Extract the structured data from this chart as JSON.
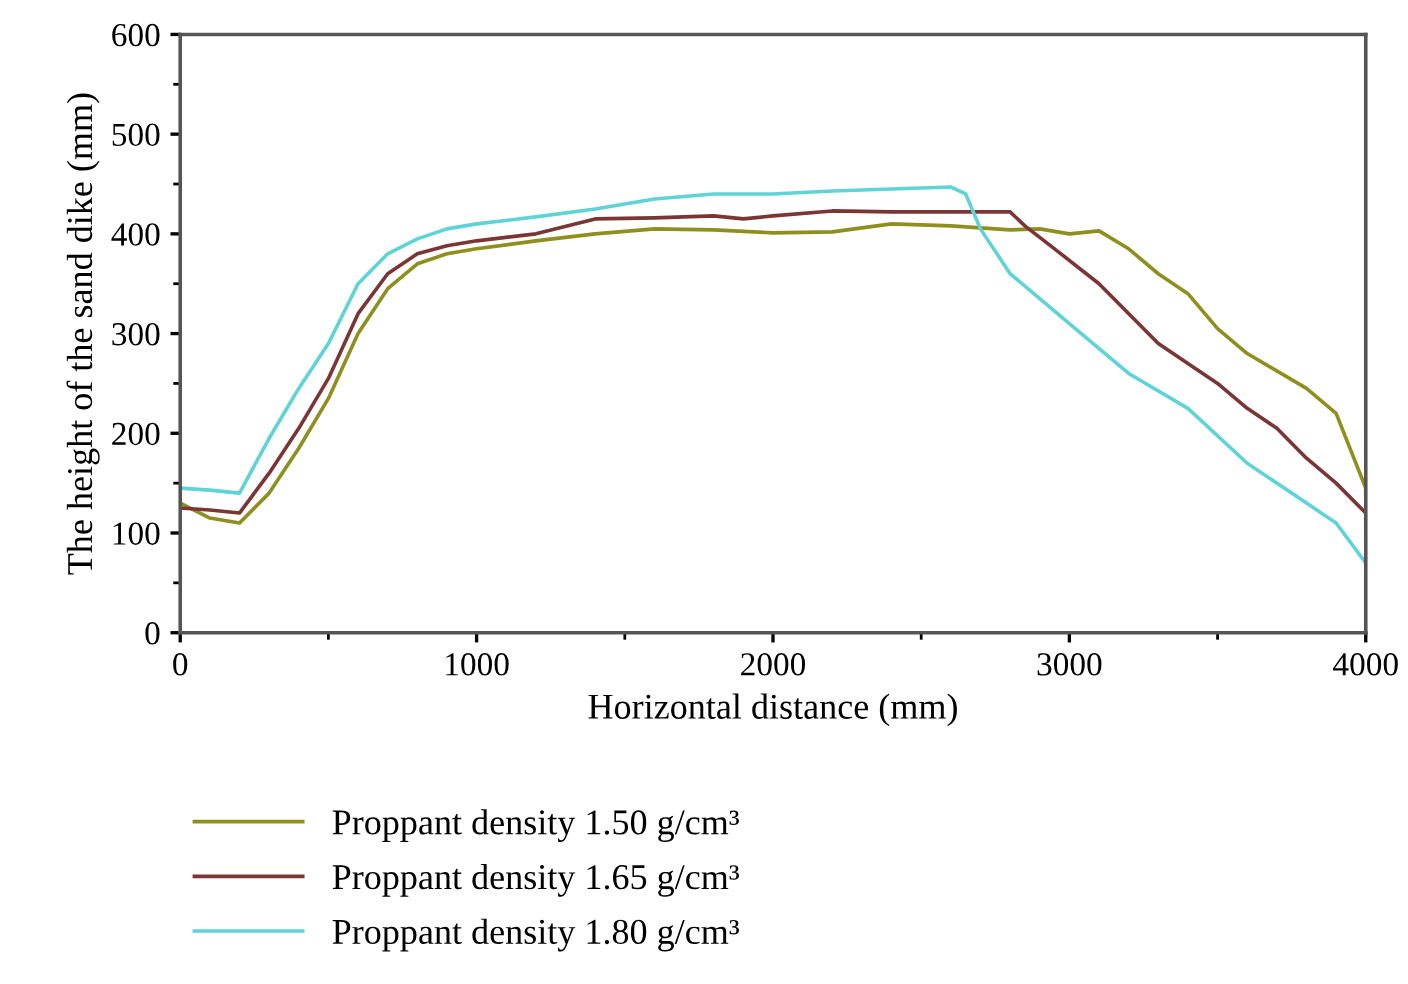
{
  "chart_data": {
    "type": "line",
    "xlabel": "Horizontal distance (mm)",
    "ylabel": "The height of the sand dike (mm)",
    "xlim": [
      0,
      4000
    ],
    "xticks": [
      0,
      1000,
      2000,
      3000,
      4000
    ],
    "ylim": [
      0,
      600
    ],
    "yticks": [
      0,
      100,
      200,
      300,
      400,
      500,
      600
    ],
    "grid": false,
    "legend": "bottom",
    "line_style": "solid",
    "series": [
      {
        "name": "Proppant density 1.50 g/cm³",
        "color": "#8f8f1f",
        "x": [
          0,
          100,
          200,
          300,
          400,
          500,
          600,
          700,
          800,
          900,
          1000,
          1200,
          1400,
          1600,
          1800,
          2000,
          2200,
          2400,
          2600,
          2800,
          2900,
          3000,
          3100,
          3200,
          3300,
          3400,
          3500,
          3600,
          3800,
          3900,
          4000
        ],
        "values": [
          130,
          115,
          110,
          140,
          185,
          235,
          300,
          345,
          370,
          380,
          385,
          393,
          400,
          405,
          404,
          401,
          402,
          410,
          408,
          404,
          405,
          400,
          403,
          385,
          360,
          340,
          305,
          280,
          245,
          220,
          145
        ]
      },
      {
        "name": "Proppant density 1.65 g/cm³",
        "color": "#7b3535",
        "x": [
          0,
          100,
          200,
          300,
          400,
          500,
          600,
          700,
          800,
          900,
          1000,
          1200,
          1400,
          1600,
          1800,
          1900,
          2000,
          2200,
          2400,
          2600,
          2800,
          2850,
          2950,
          3100,
          3300,
          3500,
          3600,
          3700,
          3800,
          3900,
          4000
        ],
        "values": [
          125,
          123,
          120,
          160,
          205,
          255,
          320,
          360,
          380,
          388,
          393,
          400,
          415,
          416,
          418,
          415,
          418,
          423,
          422,
          422,
          422,
          408,
          385,
          350,
          290,
          250,
          225,
          205,
          175,
          150,
          120
        ]
      },
      {
        "name": "Proppant density 1.80 g/cm³",
        "color": "#5fd3d6",
        "x": [
          0,
          100,
          200,
          300,
          400,
          500,
          600,
          700,
          800,
          900,
          1000,
          1200,
          1400,
          1600,
          1800,
          2000,
          2200,
          2400,
          2600,
          2650,
          2700,
          2800,
          3000,
          3200,
          3400,
          3600,
          3800,
          3900,
          4000
        ],
        "values": [
          145,
          143,
          140,
          195,
          245,
          290,
          350,
          380,
          395,
          405,
          410,
          417,
          425,
          435,
          440,
          440,
          443,
          445,
          447,
          440,
          405,
          360,
          310,
          260,
          225,
          170,
          130,
          110,
          70
        ]
      }
    ]
  }
}
